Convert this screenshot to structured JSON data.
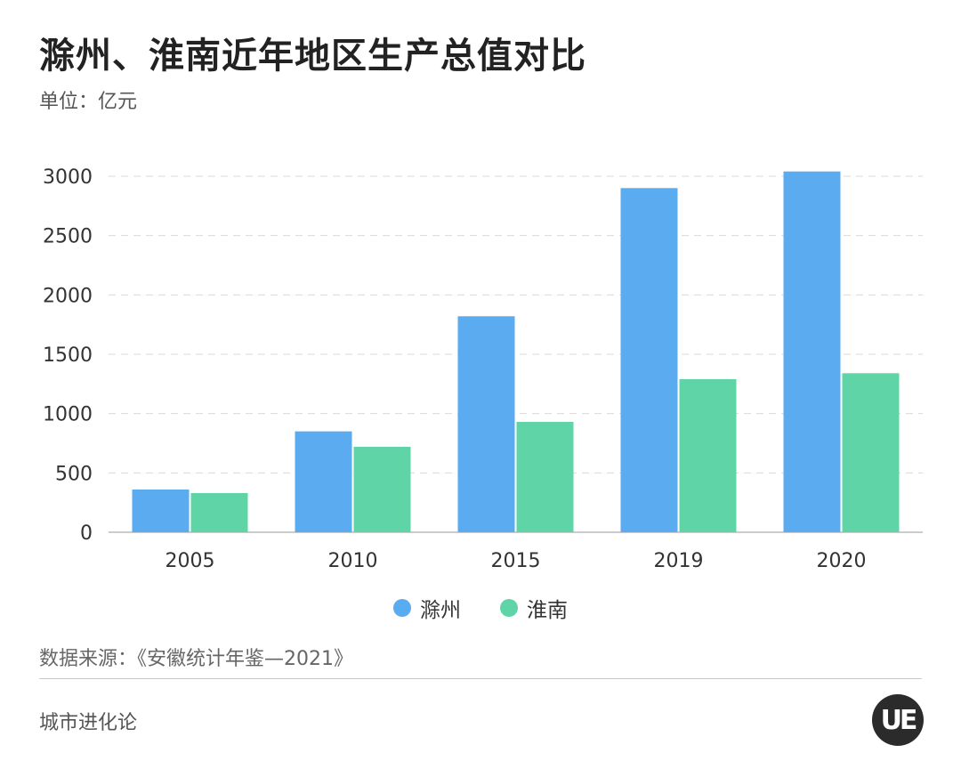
{
  "title": "滁州、淮南近年地区生产总值对比",
  "unit": "单位：亿元",
  "source": "数据来源：《安徽统计年鉴—2021》",
  "brand": "城市进化论",
  "logo_text": "UE",
  "chart_data": {
    "type": "bar",
    "categories": [
      "2005",
      "2010",
      "2015",
      "2019",
      "2020"
    ],
    "series": [
      {
        "name": "滁州",
        "color": "#5aabf0",
        "values": [
          360,
          850,
          1820,
          2900,
          3040
        ]
      },
      {
        "name": "淮南",
        "color": "#5fd4a6",
        "values": [
          330,
          720,
          930,
          1290,
          1340
        ]
      }
    ],
    "ylim": [
      0,
      3000
    ],
    "yticks": [
      0,
      500,
      1000,
      1500,
      2000,
      2500,
      3000
    ],
    "grid": true,
    "legend_position": "bottom-center"
  }
}
